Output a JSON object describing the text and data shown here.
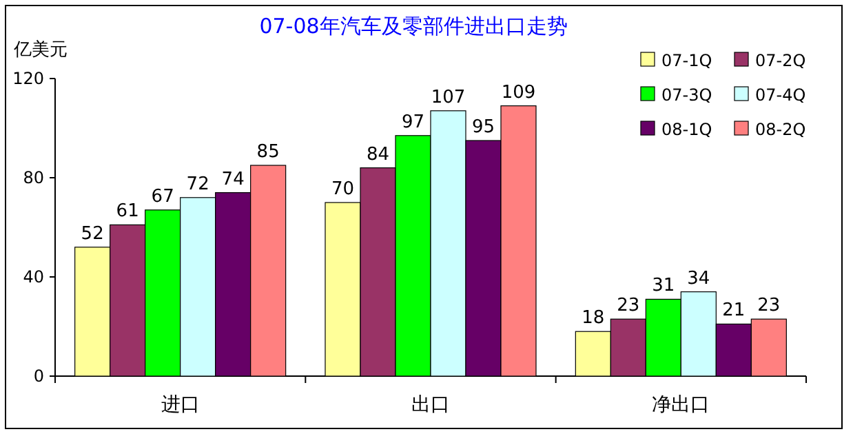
{
  "chart_data": {
    "type": "bar",
    "title": "07-08年汽车及零部件进出口走势",
    "ylabel": "亿美元",
    "categories": [
      "进口",
      "出口",
      "净出口"
    ],
    "series": [
      {
        "name": "07-1Q",
        "color": "#ffff99",
        "values": [
          52,
          70,
          18
        ]
      },
      {
        "name": "07-2Q",
        "color": "#993366",
        "values": [
          61,
          84,
          23
        ]
      },
      {
        "name": "07-3Q",
        "color": "#00ff00",
        "values": [
          67,
          97,
          31
        ]
      },
      {
        "name": "07-4Q",
        "color": "#ccffff",
        "values": [
          72,
          107,
          34
        ]
      },
      {
        "name": "08-1Q",
        "color": "#660066",
        "values": [
          74,
          95,
          21
        ]
      },
      {
        "name": "08-2Q",
        "color": "#ff8080",
        "values": [
          85,
          109,
          23
        ]
      }
    ],
    "ylim": [
      0,
      120
    ],
    "yticks": [
      0,
      40,
      80,
      120
    ],
    "data_labels": true,
    "legend": "top right",
    "grid": false
  }
}
